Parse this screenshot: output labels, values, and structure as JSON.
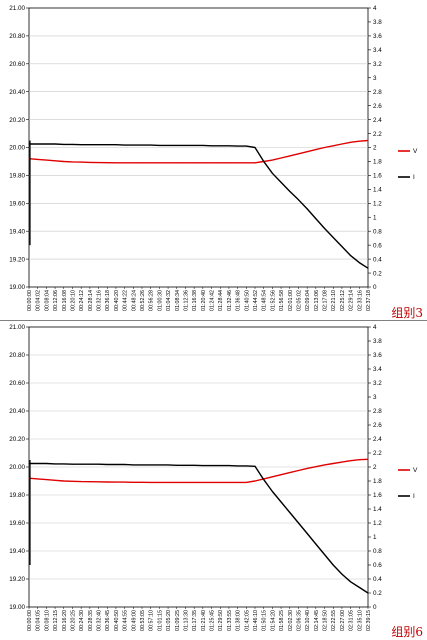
{
  "chart_data": [
    {
      "type": "line",
      "group_label": "组别3",
      "x": [
        "00:00:00",
        "00:04:02",
        "00:08:04",
        "00:12:06",
        "00:16:08",
        "00:20:10",
        "00:24:12",
        "00:28:14",
        "00:32:16",
        "00:36:18",
        "00:40:20",
        "00:44:22",
        "00:48:24",
        "00:52:26",
        "00:56:28",
        "01:00:30",
        "01:04:32",
        "01:08:34",
        "01:12:36",
        "01:16:38",
        "01:20:40",
        "01:24:42",
        "01:28:44",
        "01:32:46",
        "01:36:48",
        "01:40:50",
        "01:44:52",
        "01:48:54",
        "01:52:56",
        "01:56:58",
        "02:01:00",
        "02:05:02",
        "02:09:04",
        "02:13:06",
        "02:17:08",
        "02:21:10",
        "02:25:12",
        "02:29:14",
        "02:33:16",
        "02:37:18"
      ],
      "y_left_ticks": [
        "19.00",
        "19.20",
        "19.40",
        "19.60",
        "19.80",
        "20.00",
        "20.20",
        "20.40",
        "20.60",
        "20.80",
        "21.00"
      ],
      "y_right_ticks": [
        "0",
        "0.2",
        "0.4",
        "0.6",
        "0.8",
        "1",
        "1.2",
        "1.4",
        "1.6",
        "1.8",
        "2",
        "2.2",
        "2.4",
        "2.6",
        "2.8",
        "3",
        "3.2",
        "3.4",
        "3.6",
        "3.8",
        "4"
      ],
      "ylim_left": [
        19.0,
        21.0
      ],
      "ylim_right": [
        0,
        4
      ],
      "series": [
        {
          "name": "V",
          "axis": "left",
          "color": "#e00000",
          "values": [
            19.92,
            19.915,
            19.91,
            19.905,
            19.9,
            19.897,
            19.895,
            19.893,
            19.892,
            19.891,
            19.89,
            19.89,
            19.89,
            19.89,
            19.89,
            19.89,
            19.89,
            19.89,
            19.89,
            19.89,
            19.89,
            19.89,
            19.89,
            19.89,
            19.89,
            19.89,
            19.89,
            19.9,
            19.91,
            19.925,
            19.94,
            19.955,
            19.97,
            19.985,
            20.0,
            20.012,
            20.025,
            20.037,
            20.045,
            20.05
          ]
        },
        {
          "name": "I",
          "axis": "right",
          "color": "#000000",
          "values": [
            2.05,
            2.05,
            2.05,
            2.05,
            2.045,
            2.045,
            2.04,
            2.04,
            2.04,
            2.04,
            2.04,
            2.035,
            2.035,
            2.035,
            2.035,
            2.03,
            2.03,
            2.03,
            2.03,
            2.03,
            2.03,
            2.025,
            2.025,
            2.025,
            2.02,
            2.02,
            2.0,
            1.8,
            1.63,
            1.5,
            1.37,
            1.25,
            1.12,
            0.98,
            0.84,
            0.71,
            0.58,
            0.45,
            0.35,
            0.27
          ]
        }
      ],
      "legend": "right",
      "grid": true
    },
    {
      "type": "line",
      "group_label": "组别6",
      "x": [
        "00:00:00",
        "00:04:05",
        "00:08:10",
        "00:12:15",
        "00:16:20",
        "00:20:25",
        "00:24:30",
        "00:28:35",
        "00:32:40",
        "00:36:45",
        "00:40:50",
        "00:44:55",
        "00:49:00",
        "00:53:05",
        "00:57:10",
        "01:01:15",
        "01:05:20",
        "01:09:25",
        "01:13:30",
        "01:17:35",
        "01:21:40",
        "01:25:45",
        "01:29:50",
        "01:33:55",
        "01:38:00",
        "01:42:05",
        "01:46:10",
        "01:50:15",
        "01:54:20",
        "01:58:25",
        "02:02:30",
        "02:06:35",
        "02:10:40",
        "02:14:45",
        "02:18:50",
        "02:22:55",
        "02:27:00",
        "02:31:05",
        "02:35:10",
        "02:39:15"
      ],
      "y_left_ticks": [
        "19.00",
        "19.20",
        "19.40",
        "19.60",
        "19.80",
        "20.00",
        "20.20",
        "20.40",
        "20.60",
        "20.80",
        "21.00"
      ],
      "y_right_ticks": [
        "0",
        "0.2",
        "0.4",
        "0.6",
        "0.8",
        "1",
        "1.2",
        "1.4",
        "1.6",
        "1.8",
        "2",
        "2.2",
        "2.4",
        "2.6",
        "2.8",
        "3",
        "3.2",
        "3.4",
        "3.6",
        "3.8",
        "4"
      ],
      "ylim_left": [
        19.0,
        21.0
      ],
      "ylim_right": [
        0,
        4
      ],
      "series": [
        {
          "name": "V",
          "axis": "left",
          "color": "#e00000",
          "values": [
            19.92,
            19.915,
            19.91,
            19.905,
            19.9,
            19.898,
            19.896,
            19.895,
            19.894,
            19.893,
            19.892,
            19.892,
            19.891,
            19.891,
            19.89,
            19.89,
            19.89,
            19.89,
            19.89,
            19.89,
            19.89,
            19.89,
            19.89,
            19.89,
            19.89,
            19.89,
            19.9,
            19.915,
            19.93,
            19.945,
            19.96,
            19.975,
            19.99,
            20.002,
            20.015,
            20.025,
            20.035,
            20.045,
            20.052,
            20.055
          ]
        },
        {
          "name": "I",
          "axis": "right",
          "color": "#000000",
          "values": [
            2.05,
            2.05,
            2.05,
            2.045,
            2.045,
            2.04,
            2.04,
            2.04,
            2.04,
            2.035,
            2.035,
            2.035,
            2.03,
            2.03,
            2.03,
            2.03,
            2.03,
            2.025,
            2.025,
            2.025,
            2.02,
            2.02,
            2.02,
            2.02,
            2.015,
            2.015,
            2.01,
            1.82,
            1.65,
            1.5,
            1.35,
            1.2,
            1.05,
            0.9,
            0.75,
            0.6,
            0.47,
            0.36,
            0.28,
            0.2
          ]
        }
      ],
      "legend": "right",
      "grid": true
    }
  ]
}
